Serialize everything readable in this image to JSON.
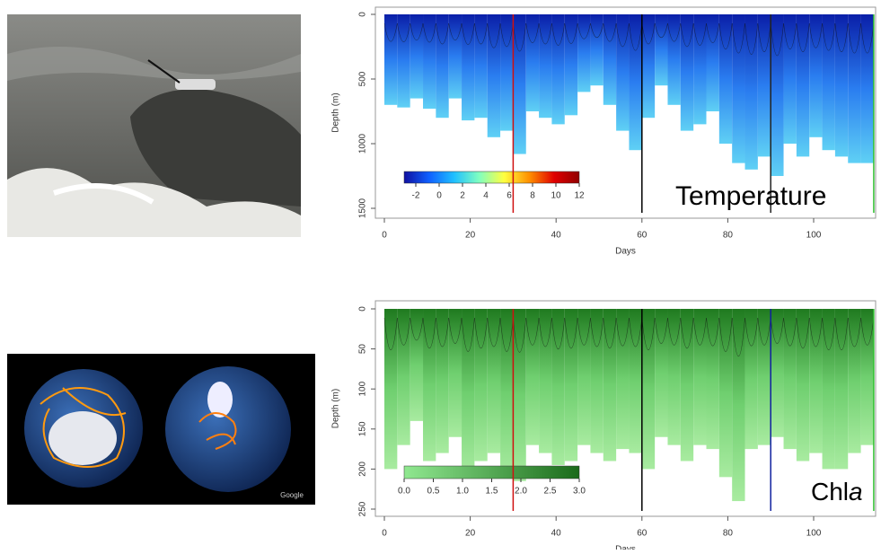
{
  "chart_data": [
    {
      "type": "heatmap",
      "xlabel": "Days",
      "ylabel": "Depth (m)",
      "annotation": [
        "Temperature"
      ],
      "xlim": [
        0,
        114
      ],
      "xticks": [
        0,
        20,
        40,
        60,
        80,
        100
      ],
      "ylim": [
        0,
        1500
      ],
      "yticks": [
        0,
        500,
        1000,
        1500
      ],
      "y_inverted": true,
      "x": [
        0,
        3,
        6,
        9,
        12,
        15,
        18,
        21,
        24,
        27,
        30,
        33,
        36,
        39,
        42,
        45,
        48,
        51,
        54,
        57,
        60,
        63,
        66,
        69,
        72,
        75,
        78,
        81,
        84,
        87,
        90,
        93,
        96,
        99,
        102,
        105,
        108,
        111
      ],
      "values": [
        700,
        720,
        650,
        730,
        800,
        650,
        820,
        800,
        950,
        900,
        1080,
        750,
        800,
        850,
        780,
        600,
        550,
        700,
        900,
        1050,
        800,
        550,
        700,
        900,
        850,
        750,
        1000,
        1150,
        1200,
        1100,
        1250,
        1000,
        1100,
        950,
        1050,
        1100,
        1150,
        1150
      ],
      "field_colors": [
        "#0a1fa8",
        "#2a7df0",
        "#5fd0f5"
      ],
      "markers": [
        {
          "value": 30,
          "color": "#d01010"
        },
        {
          "value": 60,
          "color": "#000000"
        },
        {
          "value": 90,
          "color": "#222222"
        },
        {
          "value": 114,
          "color": "#30c030"
        }
      ],
      "colorbar": {
        "lim": [
          -3,
          12
        ],
        "ticks": [
          -2,
          0,
          2,
          4,
          6,
          8,
          10,
          12
        ],
        "colors": [
          "#1010a0",
          "#1060ff",
          "#20c0ff",
          "#80ffc0",
          "#ffff40",
          "#ff9000",
          "#e00000",
          "#900000"
        ]
      }
    },
    {
      "type": "heatmap",
      "xlabel": "Days",
      "ylabel": "Depth (m)",
      "annotation": [
        "Chl",
        "a"
      ],
      "xlim": [
        0,
        114
      ],
      "xticks": [
        0,
        20,
        40,
        60,
        80,
        100
      ],
      "ylim": [
        0,
        250
      ],
      "yticks": [
        0,
        50,
        100,
        150,
        200,
        250
      ],
      "y_inverted": true,
      "x": [
        0,
        3,
        6,
        9,
        12,
        15,
        18,
        21,
        24,
        27,
        30,
        33,
        36,
        39,
        42,
        45,
        48,
        51,
        54,
        57,
        60,
        63,
        66,
        69,
        72,
        75,
        78,
        81,
        84,
        87,
        90,
        93,
        96,
        99,
        102,
        105,
        108,
        111
      ],
      "values": [
        200,
        170,
        140,
        190,
        180,
        160,
        210,
        190,
        180,
        210,
        215,
        170,
        180,
        195,
        190,
        170,
        180,
        190,
        175,
        180,
        200,
        160,
        170,
        190,
        170,
        175,
        210,
        240,
        175,
        170,
        160,
        175,
        190,
        180,
        200,
        200,
        180,
        170
      ],
      "field_colors": [
        "#1f7a1f",
        "#6fcf6f",
        "#a8eba0"
      ],
      "markers": [
        {
          "value": 30,
          "color": "#d01010"
        },
        {
          "value": 60,
          "color": "#000000"
        },
        {
          "value": 90,
          "color": "#1020a0"
        },
        {
          "value": 114,
          "color": "#30c030"
        }
      ],
      "colorbar": {
        "lim": [
          0,
          3
        ],
        "ticks": [
          {
            "value": 0,
            "label": "0.0"
          },
          {
            "value": 0.5,
            "label": "0.5"
          },
          {
            "value": 1,
            "label": "1.0"
          },
          {
            "value": 1.5,
            "label": "1.5"
          },
          {
            "value": 2,
            "label": "2.0"
          },
          {
            "value": 2.5,
            "label": "2.5"
          },
          {
            "value": 3,
            "label": "3.0"
          }
        ],
        "colors": [
          "#90e890",
          "#1a6a1a"
        ]
      }
    }
  ],
  "globe_image": {
    "credit": "Google"
  }
}
